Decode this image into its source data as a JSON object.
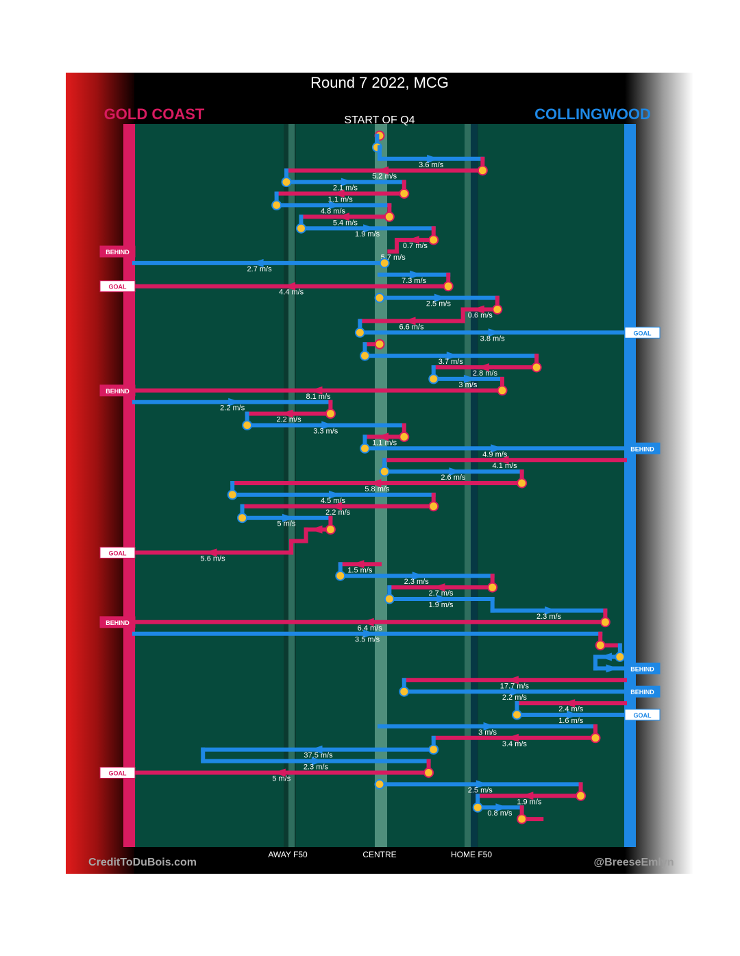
{
  "chart_data": {
    "type": "flow",
    "title": "Round 7 2022, MCG",
    "subtitle": "START OF Q4",
    "teams": {
      "away": {
        "name": "GOLD COAST",
        "color": "#d81b60"
      },
      "home": {
        "name": "COLLINGWOOD",
        "color": "#1e88e5"
      }
    },
    "axis_labels": [
      "AWAY F50",
      "CENTRE",
      "HOME F50"
    ],
    "credit_left": "CreditToDuBois.com",
    "credit_right": "@BreeseEmlyn",
    "outcome_labels": {
      "goal": "GOAL",
      "behind": "BEHIND"
    },
    "turnover_color": "#fbc02d",
    "x_range": [
      0,
      100
    ],
    "events": [
      {
        "team": "away",
        "from": 50,
        "to": 50
      },
      {
        "team": "home",
        "from": 49.5,
        "to": 49.5
      },
      {
        "team": "home",
        "from": 50,
        "to": 71,
        "speed": "3.6 m/s"
      },
      {
        "team": "away",
        "from": 71,
        "to": 31,
        "speed": "5.2 m/s"
      },
      {
        "team": "home",
        "from": 31,
        "to": 55,
        "speed": "2.1 m/s"
      },
      {
        "team": "away",
        "from": 55,
        "to": 29,
        "speed": "1.1 m/s"
      },
      {
        "team": "home",
        "from": 29,
        "to": 52,
        "speed": "4.8 m/s"
      },
      {
        "team": "away",
        "from": 52,
        "to": 34,
        "speed": "5.4 m/s"
      },
      {
        "team": "home",
        "from": 34,
        "to": 61,
        "speed": "1.9 m/s"
      },
      {
        "team": "away",
        "from": 61,
        "to": 53.5,
        "speed": "0.7 m/s"
      },
      {
        "team": "away",
        "from": 53.5,
        "to": 52,
        "speed": "5.7 m/s",
        "outcome": "behind"
      },
      {
        "team": "home",
        "from": 51,
        "to": 0,
        "speed": "2.7 m/s"
      },
      {
        "team": "home",
        "from": 50,
        "to": 64,
        "speed": "7.3 m/s"
      },
      {
        "team": "away",
        "from": 64,
        "to": 0,
        "speed": "4.4 m/s",
        "outcome": "goal"
      },
      {
        "team": "home",
        "from": 50,
        "to": 74,
        "speed": "2.5 m/s"
      },
      {
        "team": "away",
        "from": 74,
        "to": 67,
        "speed": "0.6 m/s"
      },
      {
        "team": "away",
        "from": 67,
        "to": 46,
        "speed": "6.6 m/s"
      },
      {
        "team": "home",
        "from": 46,
        "to": 100,
        "speed": "3.8 m/s",
        "outcome": "goal"
      },
      {
        "team": "away",
        "from": 50,
        "to": 47,
        "speed": ""
      },
      {
        "team": "home",
        "from": 47,
        "to": 82,
        "speed": "3.7 m/s"
      },
      {
        "team": "away",
        "from": 82,
        "to": 61,
        "speed": "2.8 m/s"
      },
      {
        "team": "home",
        "from": 61,
        "to": 75,
        "speed": "3 m/s"
      },
      {
        "team": "away",
        "from": 75,
        "to": 0,
        "speed": "8.1 m/s",
        "outcome": "behind"
      },
      {
        "team": "home",
        "from": 0,
        "to": 40,
        "speed": "2.2 m/s"
      },
      {
        "team": "away",
        "from": 40,
        "to": 23,
        "speed": "2.2 m/s"
      },
      {
        "team": "home",
        "from": 23,
        "to": 55,
        "speed": "3.3 m/s"
      },
      {
        "team": "away",
        "from": 55,
        "to": 47,
        "speed": "1.1 m/s"
      },
      {
        "team": "home",
        "from": 47,
        "to": 100,
        "speed": "4.9 m/s",
        "outcome": "behind"
      },
      {
        "team": "away",
        "from": 100,
        "to": 51,
        "speed": "4.1 m/s"
      },
      {
        "team": "home",
        "from": 51,
        "to": 79,
        "speed": "2.6 m/s"
      },
      {
        "team": "away",
        "from": 79,
        "to": 20,
        "speed": "5.8 m/s"
      },
      {
        "team": "home",
        "from": 20,
        "to": 61,
        "speed": "4.5 m/s"
      },
      {
        "team": "away",
        "from": 61,
        "to": 22,
        "speed": "2.2 m/s"
      },
      {
        "team": "home",
        "from": 22,
        "to": 40,
        "speed": "5 m/s"
      },
      {
        "team": "away",
        "from": 40,
        "to": 35,
        "speed": ""
      },
      {
        "team": "away",
        "from": 35,
        "to": 32,
        "speed": ""
      },
      {
        "team": "away",
        "from": 32,
        "to": 0,
        "speed": "5.6 m/s",
        "outcome": "goal"
      },
      {
        "team": "away",
        "from": 50,
        "to": 42,
        "speed": "1.5 m/s"
      },
      {
        "team": "home",
        "from": 42,
        "to": 73,
        "speed": "2.3 m/s"
      },
      {
        "team": "away",
        "from": 73,
        "to": 52,
        "speed": "2.7 m/s"
      },
      {
        "team": "home",
        "from": 52,
        "to": 73,
        "speed": "1.9 m/s"
      },
      {
        "team": "home",
        "from": 73,
        "to": 96,
        "speed": "2.3 m/s"
      },
      {
        "team": "away",
        "from": 96,
        "to": 0,
        "speed": "6.4 m/s",
        "outcome": "behind"
      },
      {
        "team": "home",
        "from": 0,
        "to": 95,
        "speed": "3.5 m/s"
      },
      {
        "team": "away",
        "from": 95,
        "to": 99,
        "speed": ""
      },
      {
        "team": "home",
        "from": 99,
        "to": 94,
        "speed": ""
      },
      {
        "team": "home",
        "from": 94,
        "to": 100,
        "speed": "",
        "outcome": "behind"
      },
      {
        "team": "away",
        "from": 100,
        "to": 55,
        "speed": "17.7 m/s"
      },
      {
        "team": "home",
        "from": 55,
        "to": 100,
        "speed": "2.2 m/s",
        "outcome": "behind"
      },
      {
        "team": "away",
        "from": 100,
        "to": 78,
        "speed": "2.4 m/s"
      },
      {
        "team": "home",
        "from": 78,
        "to": 100,
        "speed": "1.6 m/s",
        "outcome": "goal"
      },
      {
        "team": "home",
        "from": 50,
        "to": 94,
        "speed": "3 m/s"
      },
      {
        "team": "away",
        "from": 94,
        "to": 61,
        "speed": "3.4 m/s"
      },
      {
        "team": "home",
        "from": 61,
        "to": 14,
        "speed": "37.5 m/s"
      },
      {
        "team": "home",
        "from": 14,
        "to": 60,
        "speed": "2.3 m/s"
      },
      {
        "team": "away",
        "from": 60,
        "to": 0,
        "speed": "5 m/s",
        "outcome": "goal"
      },
      {
        "team": "home",
        "from": 50,
        "to": 91,
        "speed": "2.5 m/s"
      },
      {
        "team": "away",
        "from": 91,
        "to": 70,
        "speed": "1.9 m/s"
      },
      {
        "team": "home",
        "from": 70,
        "to": 79,
        "speed": "0.8 m/s"
      },
      {
        "team": "away",
        "from": 79,
        "to": 83,
        "speed": ""
      }
    ]
  }
}
